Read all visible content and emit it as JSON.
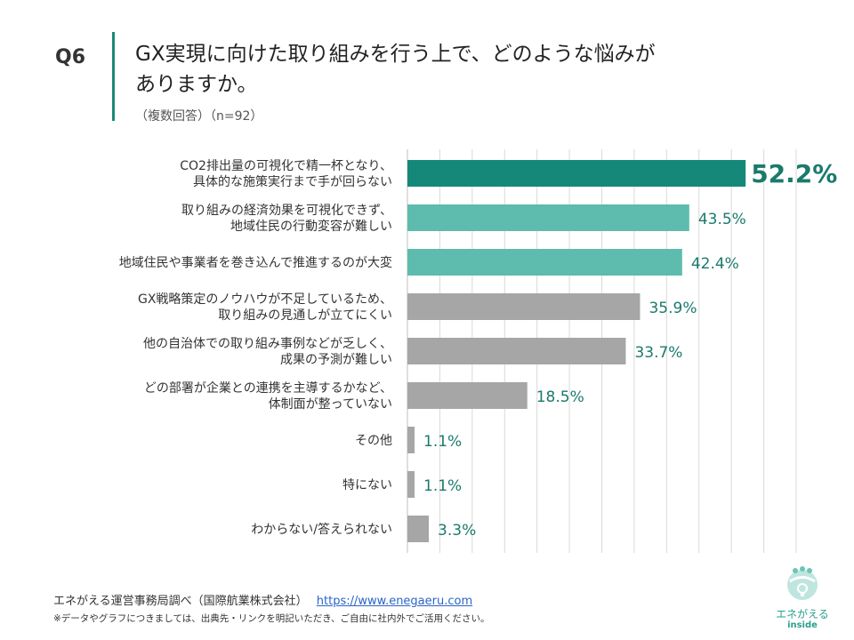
{
  "header": {
    "qnum": "Q6",
    "title_line1": "GX実現に向けた取り組みを行う上で、どのような悩みが",
    "title_line2": "ありますか。",
    "subtitle": "（複数回答）（n=92）"
  },
  "chart_data": {
    "type": "bar",
    "orientation": "horizontal",
    "categories": [
      [
        "CO2排出量の可視化で精一杯となり、",
        "具体的な施策実行まで手が回らない"
      ],
      [
        "取り組みの経済効果を可視化できず、",
        "地域住民の行動変容が難しい"
      ],
      [
        "地域住民や事業者を巻き込んで推進するのが大変"
      ],
      [
        "GX戦略策定のノウハウが不足しているため、",
        "取り組みの見通しが立てにくい"
      ],
      [
        "他の自治体での取り組み事例などが乏しく、",
        "成果の予測が難しい"
      ],
      [
        "どの部署が企業との連携を主導するかなど、",
        "体制面が整っていない"
      ],
      [
        "その他"
      ],
      [
        "特にない"
      ],
      [
        "わからない/答えられない"
      ]
    ],
    "values": [
      52.2,
      43.5,
      42.4,
      35.9,
      33.7,
      18.5,
      1.1,
      1.1,
      3.3
    ],
    "value_labels": [
      "52.2%",
      "43.5%",
      "42.4%",
      "35.9%",
      "33.7%",
      "18.5%",
      "1.1%",
      "1.1%",
      "3.3%"
    ],
    "bar_colors": [
      "#15887a",
      "#5dbcad",
      "#5dbcad",
      "#a6a6a6",
      "#a6a6a6",
      "#a6a6a6",
      "#a6a6a6",
      "#a6a6a6",
      "#a6a6a6"
    ],
    "label_color": "#1a7a6c",
    "xlim": [
      0,
      60
    ],
    "grid": true
  },
  "footer": {
    "source": "エネがえる運営事務局調べ（国際航業株式会社）",
    "url": "https://www.enegaeru.com",
    "note": "※データやグラフにつきましては、出典先・リンクを明記いただき、ご自由に社内外でご活用ください。"
  },
  "logo": {
    "name": "エネがえる",
    "sub": "inside"
  }
}
